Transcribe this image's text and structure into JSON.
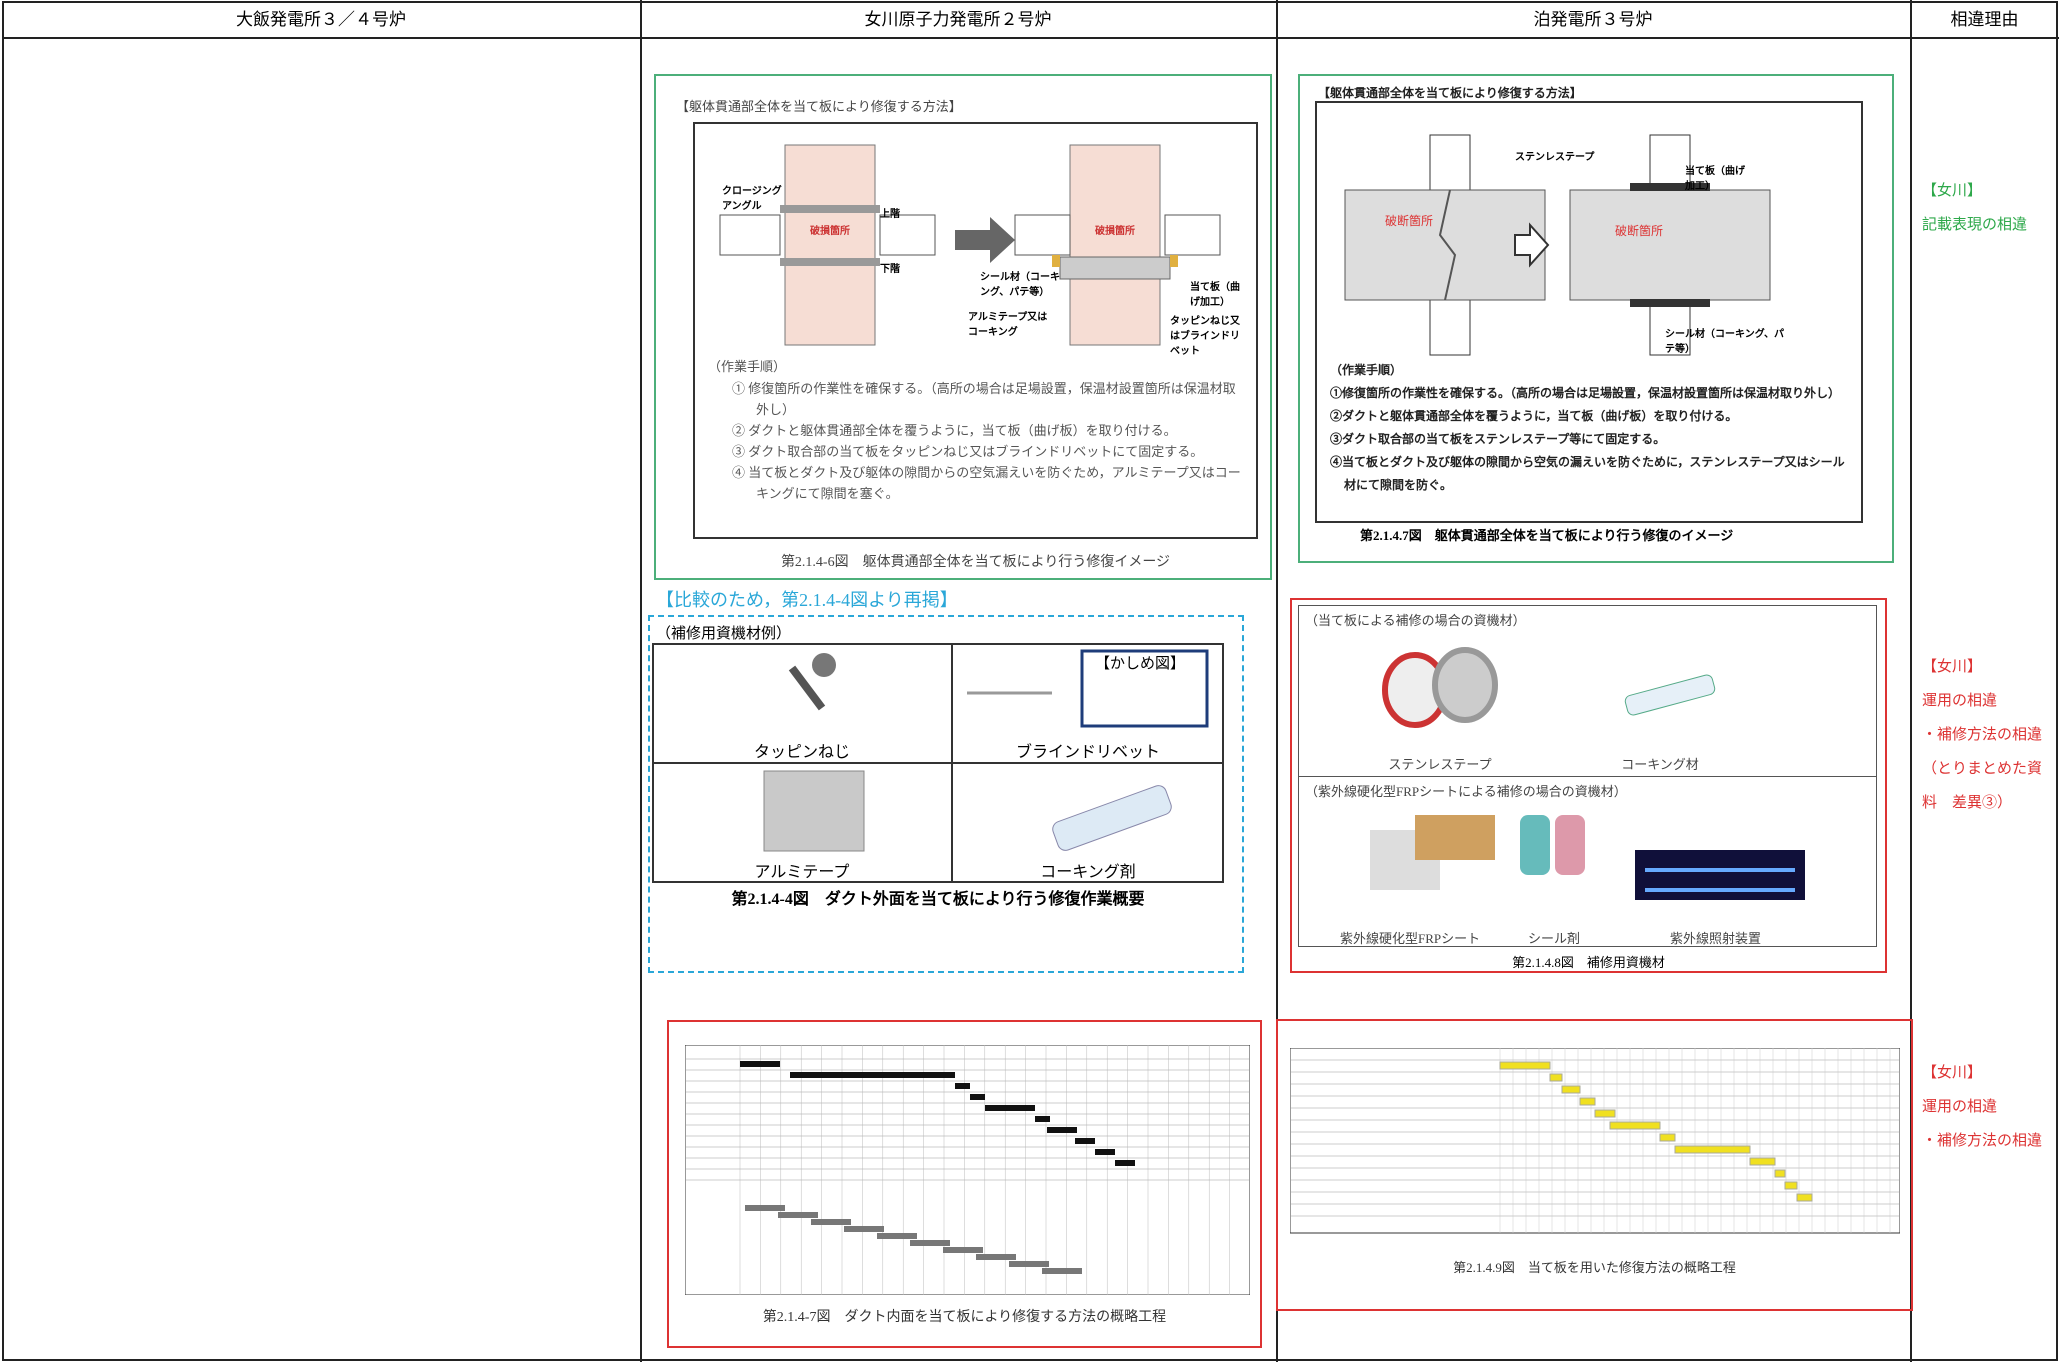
{
  "header": [
    "大飯発電所３／４号炉",
    "女川原子力発電所２号炉",
    "泊発電所３号炉",
    "相違理由"
  ],
  "onagawa": {
    "repair_figure": {
      "title": "【躯体貫通部全体を当て板により修復する方法】",
      "labels": [
        "クロージングアングル",
        "破損箇所",
        "上階",
        "下階",
        "破損箇所",
        "シール材（コーキング、パテ等）",
        "当て板（曲げ加工）",
        "アルミテープ又はコーキング",
        "タッピンねじ又はブラインドリベット"
      ],
      "steps_heading": "（作業手順）",
      "steps": [
        "① 修復箇所の作業性を確保する。（高所の場合は足場設置，保温材設置箇所は保温材取外し）",
        "② ダクトと躯体貫通部全体を覆うように，当て板（曲げ板）を取り付ける。",
        "③ ダクト取合部の当て板をタッピンねじ又はブラインドリベットにて固定する。",
        "④ 当て板とダクト及び躯体の隙間からの空気漏えいを防ぐため，アルミテープ又はコーキングにて隙間を塞ぐ。"
      ],
      "caption": "第2.1.4-6図　躯体貫通部全体を当て板により行う修復イメージ"
    },
    "reprint_note": "【比較のため，第2.1.4-4図より再掲】",
    "materials": {
      "heading": "（補修用資機材例）",
      "items": [
        "タッピンねじ",
        "ブラインドリベット",
        "アルミテープ",
        "コーキング剤"
      ],
      "inset_label": "【かしめ図】",
      "caption": "第2.1.4-4図　ダクト外面を当て板により行う修復作業概要"
    },
    "schedule": {
      "caption": "第2.1.4-7図　ダクト内面を当て板により修復する方法の概略工程"
    }
  },
  "tomari": {
    "repair_figure": {
      "title": "【躯体貫通部全体を当て板により修復する方法】",
      "labels": [
        "ステンレステープ",
        "当て板（曲げ加工）",
        "破断箇所",
        "破断箇所",
        "シール材（コーキング、パテ等）"
      ],
      "steps_heading": "（作業手順）",
      "steps": [
        "①修復箇所の作業性を確保する。（高所の場合は足場設置，保温材設置箇所は保温材取り外し）",
        "②ダクトと躯体貫通部全体を覆うように，当て板（曲げ板）を取り付ける。",
        "③ダクト取合部の当て板をステンレステープ等にて固定する。",
        "④当て板とダクト及び躯体の隙間から空気の漏えいを防ぐために，ステンレステープ又はシール材にて隙間を防ぐ。"
      ],
      "caption": "第2.1.4.7図　躯体貫通部全体を当て板により行う修復のイメージ"
    },
    "materials": {
      "groups": [
        {
          "heading": "（当て板による補修の場合の資機材）",
          "items": [
            "ステンレステープ",
            "コーキング材"
          ]
        },
        {
          "heading": "（紫外線硬化型FRPシートによる補修の場合の資機材）",
          "items": [
            "紫外線硬化型FRPシート",
            "シール剤",
            "紫外線照射装置"
          ]
        }
      ],
      "caption": "第2.1.4.8図　補修用資機材"
    },
    "schedule": {
      "caption": "第2.1.4.9図　当て板を用いた修復方法の概略工程"
    }
  },
  "reasons": [
    {
      "tag": "【女川】",
      "lines": [
        "記載表現の相違"
      ]
    },
    {
      "tag": "【女川】",
      "lines": [
        "運用の相違",
        "・補修方法の相違（とりまとめた資料　差異③）"
      ]
    },
    {
      "tag": "【女川】",
      "lines": [
        "運用の相違",
        "・補修方法の相違"
      ]
    }
  ]
}
